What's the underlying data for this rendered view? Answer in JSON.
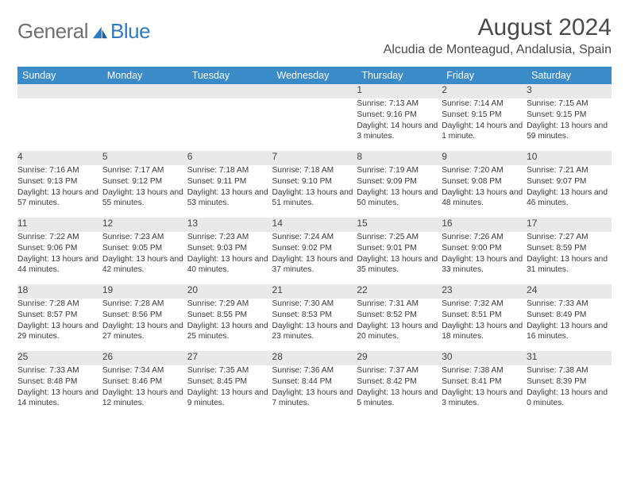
{
  "logo": {
    "text1": "General",
    "text2": "Blue"
  },
  "title": "August 2024",
  "location": "Alcudia de Monteagud, Andalusia, Spain",
  "colors": {
    "header_bg": "#3b8bc9",
    "header_text": "#ffffff",
    "daynum_bg": "#e9e9e9",
    "row_border": "#2f6fa3",
    "logo_gray": "#6f6f6f",
    "logo_blue": "#2f7bbf",
    "text": "#3a3a3a",
    "page_bg": "#ffffff"
  },
  "typography": {
    "title_fontsize": 30,
    "location_fontsize": 16,
    "dayhead_fontsize": 12.5,
    "daynum_fontsize": 12,
    "cell_fontsize": 10.2
  },
  "day_headers": [
    "Sunday",
    "Monday",
    "Tuesday",
    "Wednesday",
    "Thursday",
    "Friday",
    "Saturday"
  ],
  "weeks": [
    [
      null,
      null,
      null,
      null,
      {
        "n": "1",
        "sr": "7:13 AM",
        "ss": "9:16 PM",
        "dl": "14 hours and 3 minutes."
      },
      {
        "n": "2",
        "sr": "7:14 AM",
        "ss": "9:15 PM",
        "dl": "14 hours and 1 minute."
      },
      {
        "n": "3",
        "sr": "7:15 AM",
        "ss": "9:15 PM",
        "dl": "13 hours and 59 minutes."
      }
    ],
    [
      {
        "n": "4",
        "sr": "7:16 AM",
        "ss": "9:13 PM",
        "dl": "13 hours and 57 minutes."
      },
      {
        "n": "5",
        "sr": "7:17 AM",
        "ss": "9:12 PM",
        "dl": "13 hours and 55 minutes."
      },
      {
        "n": "6",
        "sr": "7:18 AM",
        "ss": "9:11 PM",
        "dl": "13 hours and 53 minutes."
      },
      {
        "n": "7",
        "sr": "7:18 AM",
        "ss": "9:10 PM",
        "dl": "13 hours and 51 minutes."
      },
      {
        "n": "8",
        "sr": "7:19 AM",
        "ss": "9:09 PM",
        "dl": "13 hours and 50 minutes."
      },
      {
        "n": "9",
        "sr": "7:20 AM",
        "ss": "9:08 PM",
        "dl": "13 hours and 48 minutes."
      },
      {
        "n": "10",
        "sr": "7:21 AM",
        "ss": "9:07 PM",
        "dl": "13 hours and 46 minutes."
      }
    ],
    [
      {
        "n": "11",
        "sr": "7:22 AM",
        "ss": "9:06 PM",
        "dl": "13 hours and 44 minutes."
      },
      {
        "n": "12",
        "sr": "7:23 AM",
        "ss": "9:05 PM",
        "dl": "13 hours and 42 minutes."
      },
      {
        "n": "13",
        "sr": "7:23 AM",
        "ss": "9:03 PM",
        "dl": "13 hours and 40 minutes."
      },
      {
        "n": "14",
        "sr": "7:24 AM",
        "ss": "9:02 PM",
        "dl": "13 hours and 37 minutes."
      },
      {
        "n": "15",
        "sr": "7:25 AM",
        "ss": "9:01 PM",
        "dl": "13 hours and 35 minutes."
      },
      {
        "n": "16",
        "sr": "7:26 AM",
        "ss": "9:00 PM",
        "dl": "13 hours and 33 minutes."
      },
      {
        "n": "17",
        "sr": "7:27 AM",
        "ss": "8:59 PM",
        "dl": "13 hours and 31 minutes."
      }
    ],
    [
      {
        "n": "18",
        "sr": "7:28 AM",
        "ss": "8:57 PM",
        "dl": "13 hours and 29 minutes."
      },
      {
        "n": "19",
        "sr": "7:28 AM",
        "ss": "8:56 PM",
        "dl": "13 hours and 27 minutes."
      },
      {
        "n": "20",
        "sr": "7:29 AM",
        "ss": "8:55 PM",
        "dl": "13 hours and 25 minutes."
      },
      {
        "n": "21",
        "sr": "7:30 AM",
        "ss": "8:53 PM",
        "dl": "13 hours and 23 minutes."
      },
      {
        "n": "22",
        "sr": "7:31 AM",
        "ss": "8:52 PM",
        "dl": "13 hours and 20 minutes."
      },
      {
        "n": "23",
        "sr": "7:32 AM",
        "ss": "8:51 PM",
        "dl": "13 hours and 18 minutes."
      },
      {
        "n": "24",
        "sr": "7:33 AM",
        "ss": "8:49 PM",
        "dl": "13 hours and 16 minutes."
      }
    ],
    [
      {
        "n": "25",
        "sr": "7:33 AM",
        "ss": "8:48 PM",
        "dl": "13 hours and 14 minutes."
      },
      {
        "n": "26",
        "sr": "7:34 AM",
        "ss": "8:46 PM",
        "dl": "13 hours and 12 minutes."
      },
      {
        "n": "27",
        "sr": "7:35 AM",
        "ss": "8:45 PM",
        "dl": "13 hours and 9 minutes."
      },
      {
        "n": "28",
        "sr": "7:36 AM",
        "ss": "8:44 PM",
        "dl": "13 hours and 7 minutes."
      },
      {
        "n": "29",
        "sr": "7:37 AM",
        "ss": "8:42 PM",
        "dl": "13 hours and 5 minutes."
      },
      {
        "n": "30",
        "sr": "7:38 AM",
        "ss": "8:41 PM",
        "dl": "13 hours and 3 minutes."
      },
      {
        "n": "31",
        "sr": "7:38 AM",
        "ss": "8:39 PM",
        "dl": "13 hours and 0 minutes."
      }
    ]
  ],
  "labels": {
    "sunrise": "Sunrise: ",
    "sunset": "Sunset: ",
    "daylight": "Daylight: "
  }
}
